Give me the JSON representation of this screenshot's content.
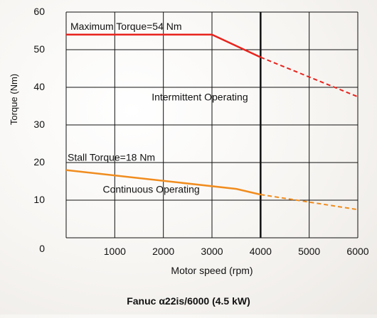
{
  "chart_data": {
    "type": "line",
    "title": "",
    "caption": "Fanuc α22is/6000 (4.5 kW)",
    "xlabel": "Motor speed (rpm)",
    "ylabel": "Torque (Nm)",
    "xlim": [
      0,
      6000
    ],
    "ylim": [
      0,
      60
    ],
    "x_ticks": [
      1000,
      2000,
      3000,
      4000,
      5000,
      6000
    ],
    "y_ticks": [
      0,
      10,
      20,
      30,
      40,
      50,
      60
    ],
    "grid": true,
    "vertical_marker_x": 4000,
    "series": [
      {
        "name": "Maximum Torque=54 Nm",
        "color": "#e8231d",
        "solid": [
          [
            0,
            54
          ],
          [
            3000,
            54
          ],
          [
            4000,
            48
          ]
        ],
        "dashed": [
          [
            4000,
            48
          ],
          [
            6000,
            37.5
          ]
        ]
      },
      {
        "name": "Stall Torque=18 Nm",
        "color": "#f08c1e",
        "solid": [
          [
            0,
            18
          ],
          [
            3500,
            13
          ],
          [
            4000,
            11.5
          ]
        ],
        "dashed": [
          [
            4000,
            11.5
          ],
          [
            6000,
            7.5
          ]
        ]
      }
    ],
    "annotations": [
      {
        "text": "Intermittent Operating",
        "x": 2750,
        "y": 36.5
      },
      {
        "text": "Continuous Operating",
        "x": 1750,
        "y": 12
      }
    ]
  }
}
